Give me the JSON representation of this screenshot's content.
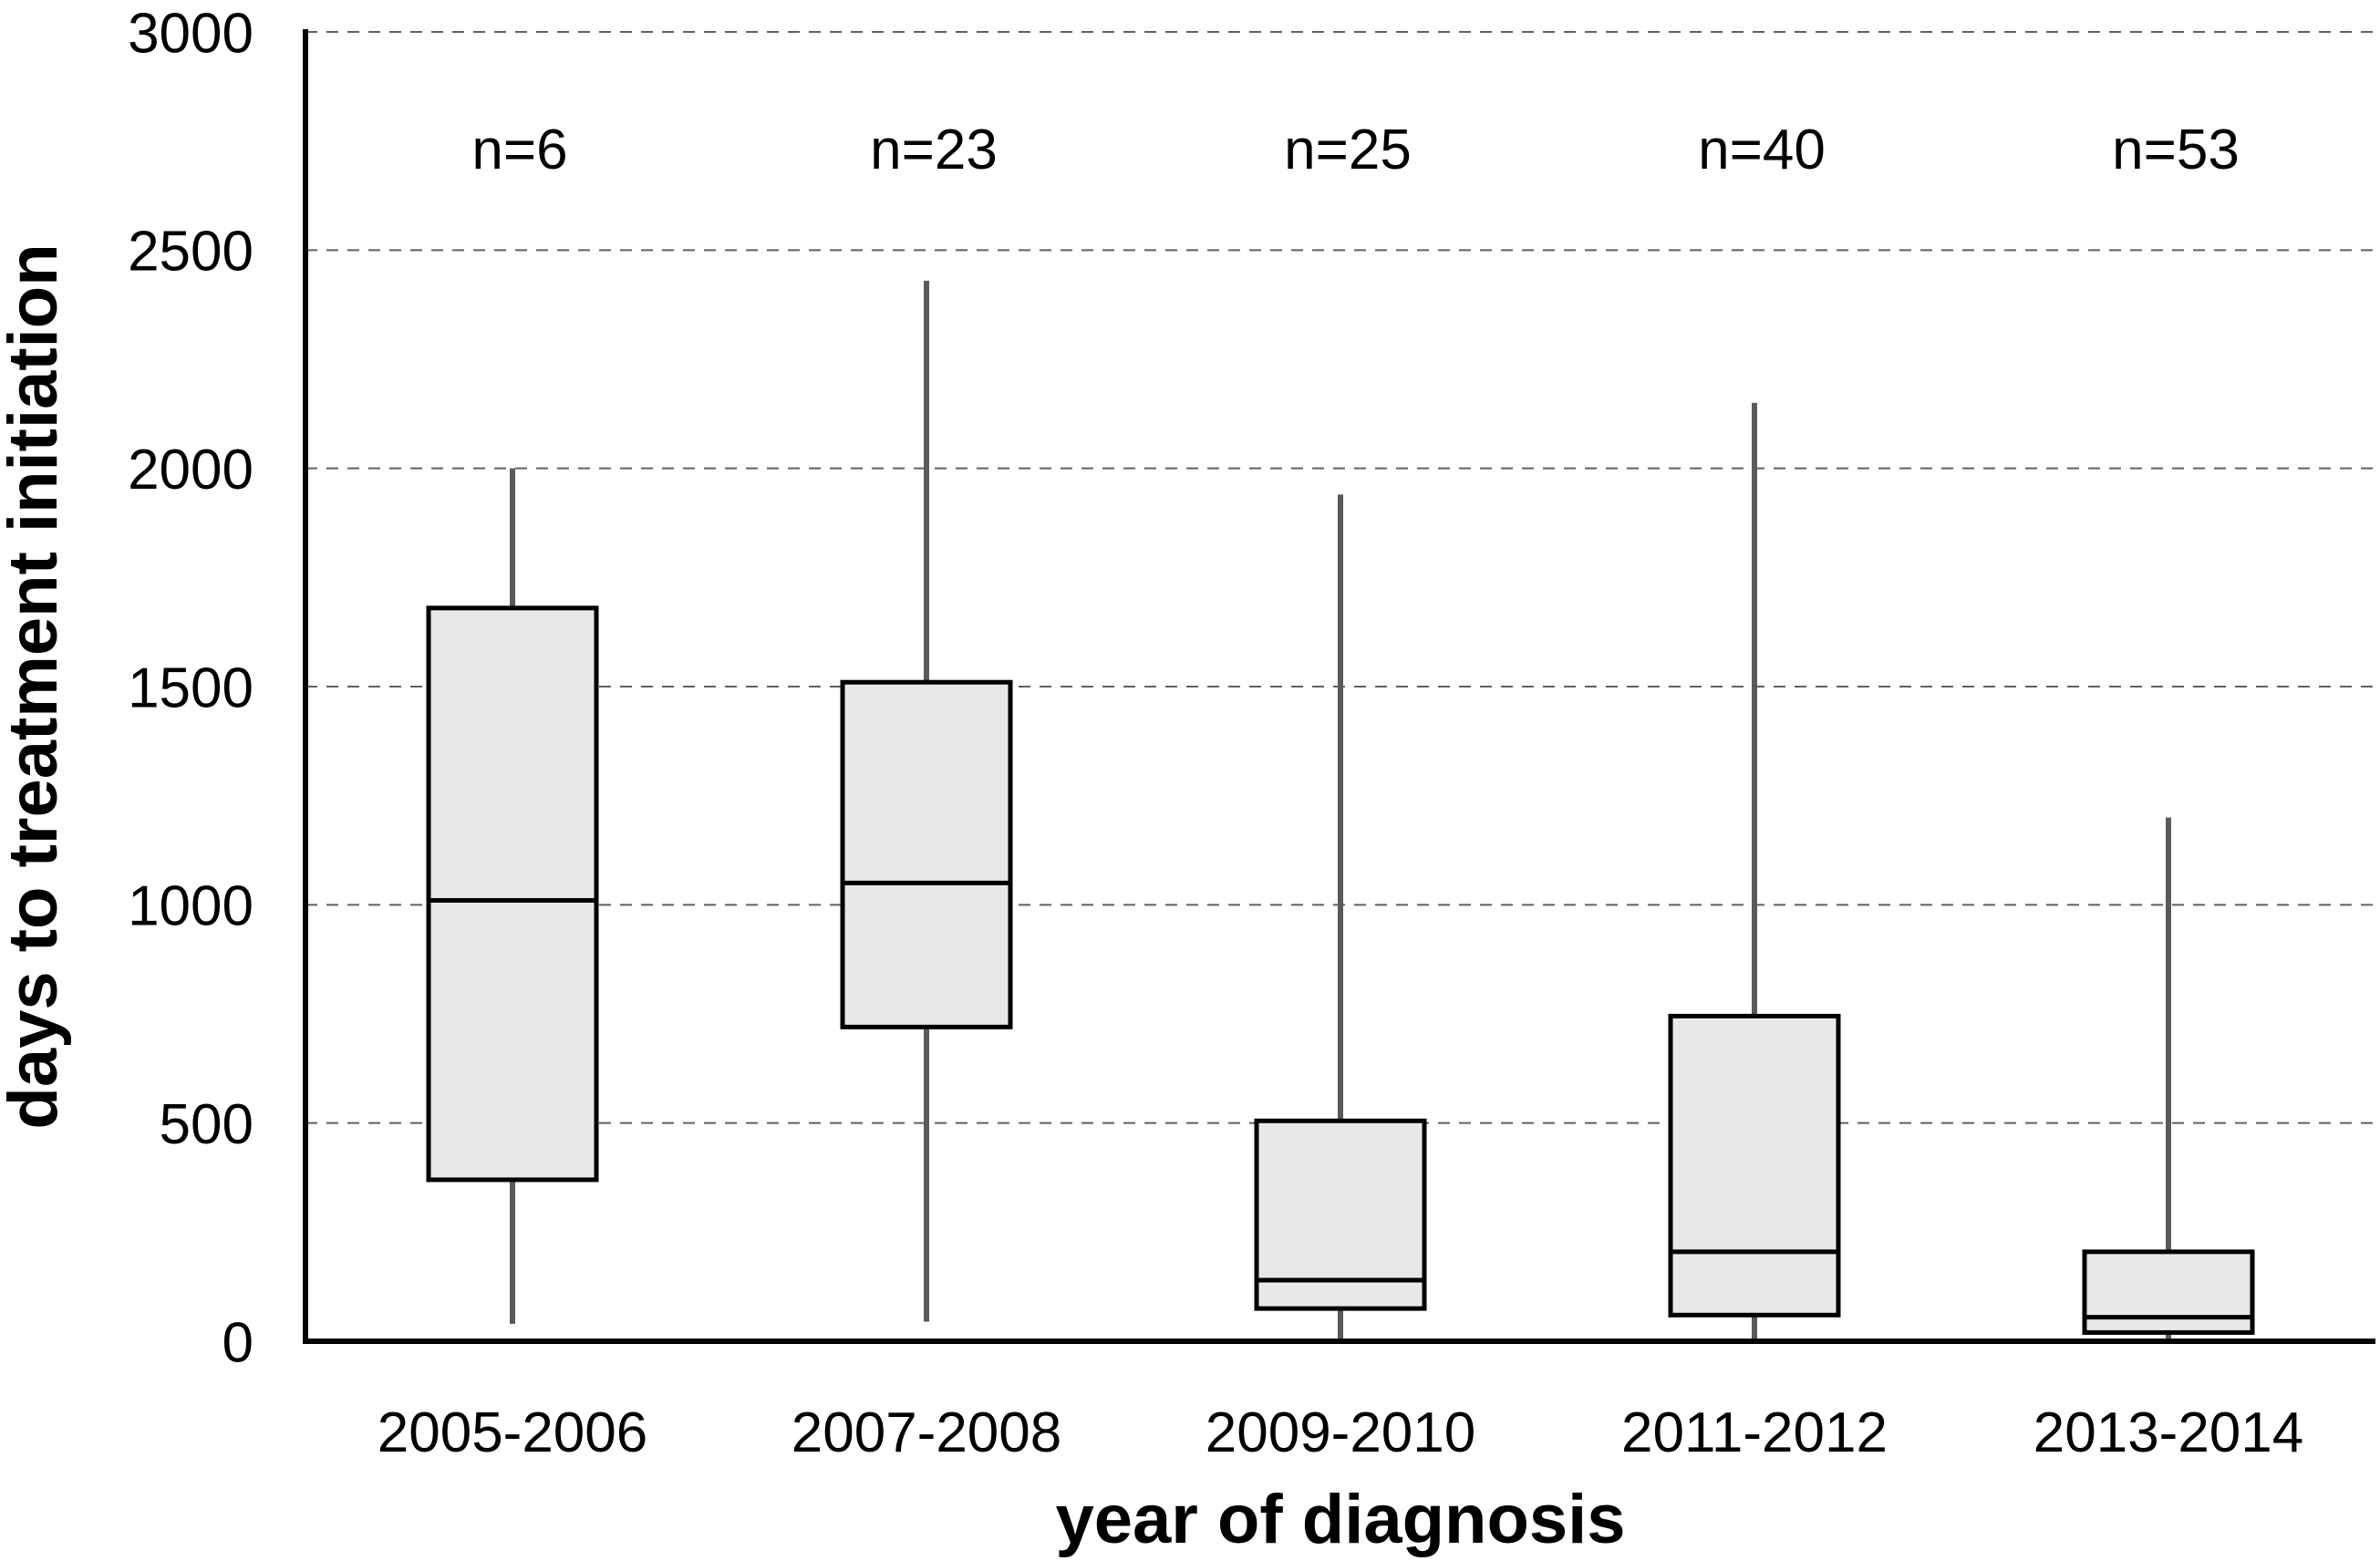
{
  "chart_data": {
    "type": "boxplot",
    "title": "",
    "xlabel": "year of diagnosis",
    "ylabel": "days to treatment initiation",
    "categories": [
      "2005-2006",
      "2007-2008",
      "2009-2010",
      "2011-2012",
      "2013-2014"
    ],
    "n_labels": [
      "n=6",
      "n=23",
      "n=25",
      "n=40",
      "n=53"
    ],
    "y_ticks": [
      0,
      500,
      1000,
      1500,
      2000,
      2500,
      3000
    ],
    "ylim": [
      0,
      3000
    ],
    "grid": {
      "horizontal": true,
      "style": "dashed",
      "at_values": [
        500,
        1000,
        1500,
        2000,
        2500,
        3000
      ]
    },
    "legend": "none",
    "series": [
      {
        "category": "2005-2006",
        "n": 6,
        "whisker_low": 40,
        "q1": 370,
        "median": 1010,
        "q3": 1680,
        "whisker_high": 2000
      },
      {
        "category": "2007-2008",
        "n": 23,
        "whisker_low": 45,
        "q1": 720,
        "median": 1050,
        "q3": 1510,
        "whisker_high": 2430
      },
      {
        "category": "2009-2010",
        "n": 25,
        "whisker_low": 0,
        "q1": 75,
        "median": 140,
        "q3": 505,
        "whisker_high": 1940
      },
      {
        "category": "2011-2012",
        "n": 40,
        "whisker_low": 0,
        "q1": 60,
        "median": 205,
        "q3": 745,
        "whisker_high": 2150
      },
      {
        "category": "2013-2014",
        "n": 53,
        "whisker_low": 0,
        "q1": 20,
        "median": 55,
        "q3": 205,
        "whisker_high": 1200
      }
    ],
    "colors": {
      "box_fill": "#e8e8e8",
      "box_border": "#000000",
      "median": "#000000",
      "whisker": "#5a5a5a",
      "grid": "#606060",
      "axis": "#000000",
      "text": "#000000"
    }
  }
}
